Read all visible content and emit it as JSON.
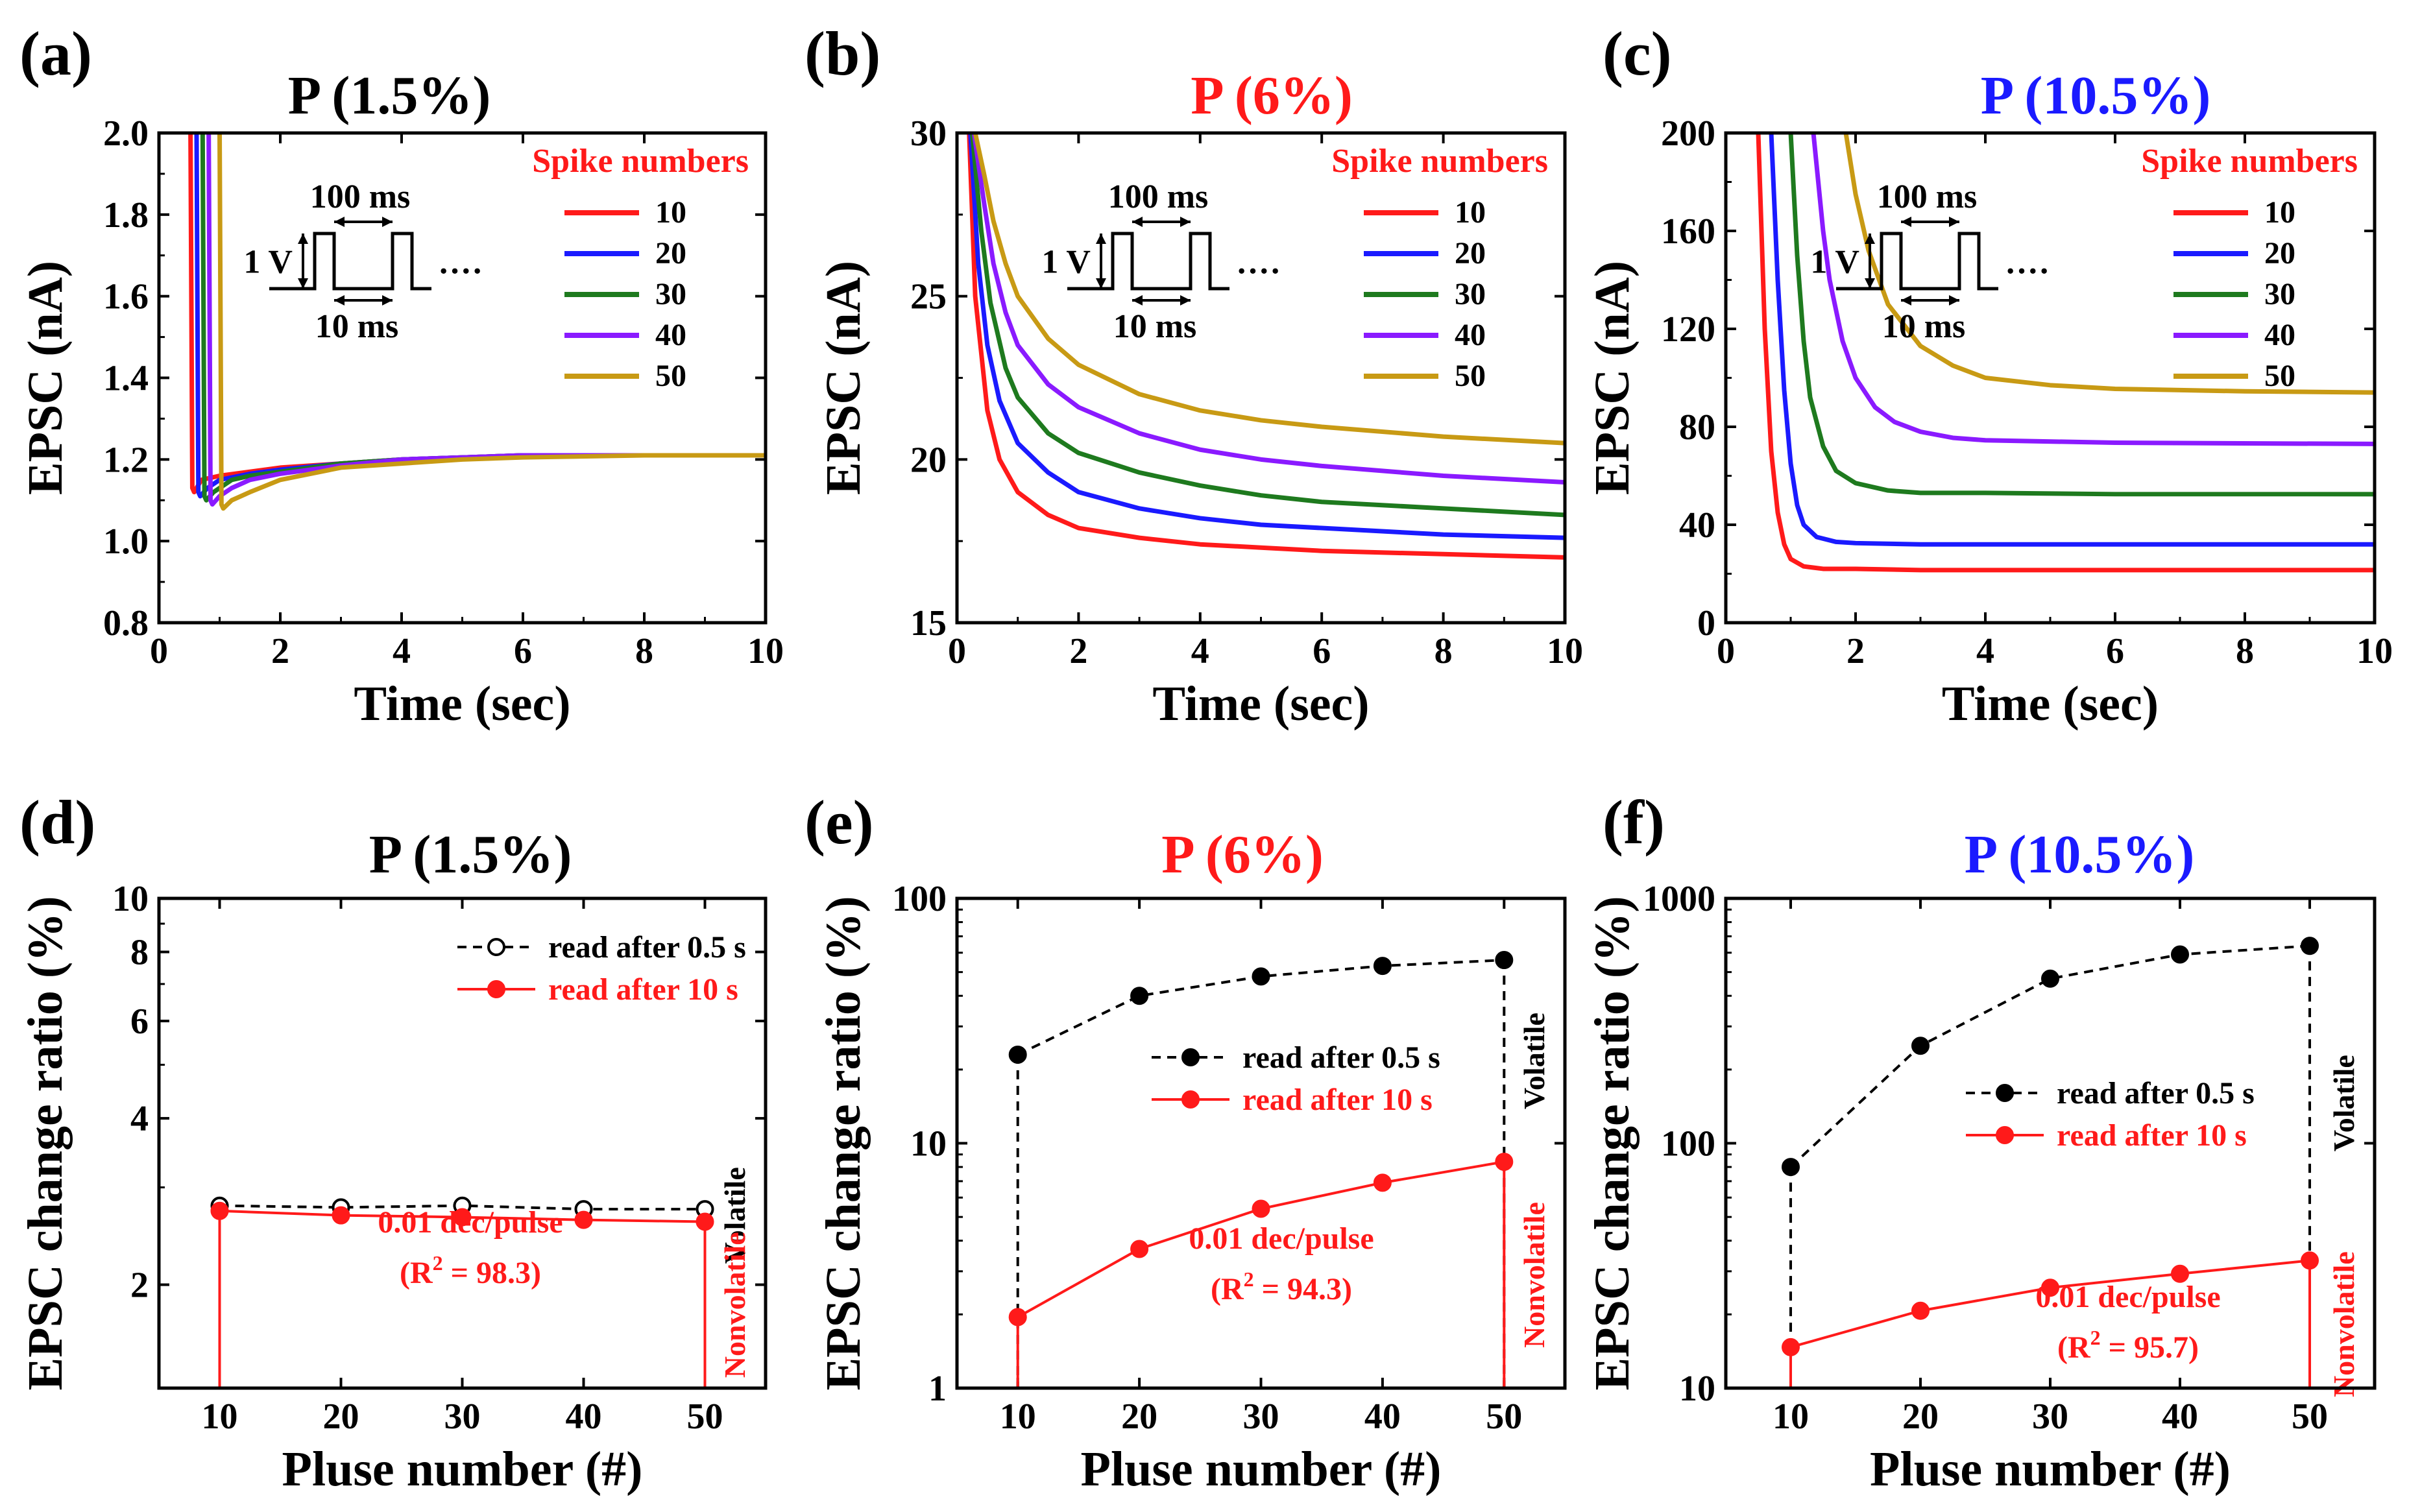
{
  "figure": {
    "colors": {
      "red": "#ff1a1a",
      "blue": "#1a1aff",
      "green": "#1e7a1e",
      "purple": "#8a1aff",
      "gold": "#c89a14",
      "black": "#000000"
    }
  },
  "chart_data": [
    {
      "panel_label": "(a)",
      "type": "line",
      "title": "P (1.5%)",
      "title_color": "#000000",
      "xlabel": "Time (sec)",
      "ylabel": "EPSC (nA)",
      "xlim": [
        0,
        10
      ],
      "ylim": [
        0.8,
        2.0
      ],
      "xticks": [
        0,
        2,
        4,
        6,
        8,
        10
      ],
      "xtick_labels": [
        "0",
        "2",
        "4",
        "6",
        "8",
        "10"
      ],
      "yticks": [
        0.8,
        1.0,
        1.2,
        1.4,
        1.6,
        1.8,
        2.0
      ],
      "ytick_labels": [
        "0.8",
        "1.0",
        "1.2",
        "1.4",
        "1.6",
        "1.8",
        "2.0"
      ],
      "legend_title": "Spike numbers",
      "inset": {
        "period_label": "100 ms",
        "amp_label": "1 V",
        "width_label": "10 ms",
        "dots": "····"
      },
      "series": [
        {
          "name": "10",
          "color": "#ff1a1a",
          "x": [
            0.52,
            0.55,
            0.58,
            0.7,
            1,
            1.5,
            2,
            3,
            4,
            5,
            6,
            8,
            10
          ],
          "y": [
            2.0,
            1.13,
            1.12,
            1.15,
            1.16,
            1.17,
            1.18,
            1.19,
            1.2,
            1.205,
            1.21,
            1.21,
            1.21
          ]
        },
        {
          "name": "20",
          "color": "#1a1aff",
          "x": [
            0.62,
            0.65,
            0.68,
            0.8,
            1,
            1.5,
            2,
            3,
            4,
            5,
            6,
            8,
            10
          ],
          "y": [
            2.0,
            1.12,
            1.11,
            1.13,
            1.15,
            1.165,
            1.175,
            1.19,
            1.2,
            1.205,
            1.21,
            1.21,
            1.21
          ]
        },
        {
          "name": "30",
          "color": "#1e7a1e",
          "x": [
            0.72,
            0.75,
            0.78,
            0.9,
            1.2,
            1.5,
            2,
            3,
            4,
            5,
            6,
            8,
            10
          ],
          "y": [
            2.0,
            1.11,
            1.1,
            1.12,
            1.15,
            1.16,
            1.17,
            1.19,
            1.2,
            1.205,
            1.21,
            1.21,
            1.21
          ]
        },
        {
          "name": "40",
          "color": "#8a1aff",
          "x": [
            0.82,
            0.85,
            0.88,
            1.0,
            1.2,
            1.5,
            2,
            3,
            4,
            5,
            6,
            8,
            10
          ],
          "y": [
            2.0,
            1.1,
            1.09,
            1.11,
            1.13,
            1.15,
            1.165,
            1.185,
            1.2,
            1.205,
            1.21,
            1.21,
            1.21
          ]
        },
        {
          "name": "50",
          "color": "#c89a14",
          "x": [
            1.0,
            1.03,
            1.06,
            1.2,
            1.5,
            2,
            3,
            4,
            5,
            6,
            8,
            10
          ],
          "y": [
            2.0,
            1.09,
            1.08,
            1.1,
            1.12,
            1.15,
            1.18,
            1.19,
            1.2,
            1.205,
            1.21,
            1.21
          ]
        }
      ]
    },
    {
      "panel_label": "(b)",
      "type": "line",
      "title": "P (6%)",
      "title_color": "#ff1a1a",
      "xlabel": "Time (sec)",
      "ylabel": "EPSC (nA)",
      "xlim": [
        0,
        10
      ],
      "ylim": [
        15,
        30
      ],
      "xticks": [
        0,
        2,
        4,
        6,
        8,
        10
      ],
      "xtick_labels": [
        "0",
        "2",
        "4",
        "6",
        "8",
        "10"
      ],
      "yticks": [
        15,
        20,
        25,
        30
      ],
      "ytick_labels": [
        "15",
        "20",
        "25",
        "30"
      ],
      "legend_title": "Spike numbers",
      "inset": {
        "period_label": "100 ms",
        "amp_label": "1 V",
        "width_label": "10 ms",
        "dots": "····"
      },
      "series": [
        {
          "name": "10",
          "color": "#ff1a1a",
          "x": [
            0.2,
            0.3,
            0.5,
            0.7,
            1,
            1.5,
            2,
            3,
            4,
            5,
            6,
            8,
            10
          ],
          "y": [
            30,
            25,
            21.5,
            20.0,
            19.0,
            18.3,
            17.9,
            17.6,
            17.4,
            17.3,
            17.2,
            17.1,
            17.0
          ]
        },
        {
          "name": "20",
          "color": "#1a1aff",
          "x": [
            0.22,
            0.35,
            0.5,
            0.7,
            1,
            1.5,
            2,
            3,
            4,
            5,
            6,
            8,
            10
          ],
          "y": [
            30,
            26,
            23.5,
            21.8,
            20.5,
            19.6,
            19.0,
            18.5,
            18.2,
            18.0,
            17.9,
            17.7,
            17.6
          ]
        },
        {
          "name": "30",
          "color": "#1e7a1e",
          "x": [
            0.25,
            0.4,
            0.55,
            0.8,
            1,
            1.5,
            2,
            3,
            4,
            5,
            6,
            8,
            10
          ],
          "y": [
            30,
            27,
            24.8,
            22.8,
            21.9,
            20.8,
            20.2,
            19.6,
            19.2,
            18.9,
            18.7,
            18.5,
            18.3
          ]
        },
        {
          "name": "40",
          "color": "#8a1aff",
          "x": [
            0.28,
            0.45,
            0.6,
            0.8,
            1,
            1.5,
            2,
            3,
            4,
            5,
            6,
            8,
            10
          ],
          "y": [
            30,
            27.8,
            26.0,
            24.5,
            23.5,
            22.3,
            21.6,
            20.8,
            20.3,
            20.0,
            19.8,
            19.5,
            19.3
          ]
        },
        {
          "name": "50",
          "color": "#c89a14",
          "x": [
            0.3,
            0.45,
            0.6,
            0.8,
            1,
            1.5,
            2,
            3,
            4,
            5,
            6,
            8,
            10
          ],
          "y": [
            30,
            28.7,
            27.3,
            26.0,
            25.0,
            23.7,
            22.9,
            22.0,
            21.5,
            21.2,
            21.0,
            20.7,
            20.5
          ]
        }
      ]
    },
    {
      "panel_label": "(c)",
      "type": "line",
      "title": "P (10.5%)",
      "title_color": "#1a1aff",
      "xlabel": "Time (sec)",
      "ylabel": "EPSC (nA)",
      "xlim": [
        0,
        10
      ],
      "ylim": [
        0,
        200
      ],
      "xticks": [
        0,
        2,
        4,
        6,
        8,
        10
      ],
      "xtick_labels": [
        "0",
        "2",
        "4",
        "6",
        "8",
        "10"
      ],
      "yticks": [
        0,
        40,
        80,
        120,
        160,
        200
      ],
      "ytick_labels": [
        "0",
        "40",
        "80",
        "120",
        "160",
        "200"
      ],
      "legend_title": "Spike numbers",
      "inset": {
        "period_label": "100 ms",
        "amp_label": "1 V",
        "width_label": "10 ms",
        "dots": "····"
      },
      "series": [
        {
          "name": "10",
          "color": "#ff1a1a",
          "x": [
            0.5,
            0.6,
            0.7,
            0.8,
            0.9,
            1.0,
            1.2,
            1.5,
            2,
            3,
            5,
            10
          ],
          "y": [
            200,
            120,
            70,
            45,
            32,
            26,
            23,
            22,
            22,
            21.5,
            21.5,
            21.5
          ]
        },
        {
          "name": "20",
          "color": "#1a1aff",
          "x": [
            0.7,
            0.8,
            0.9,
            1.0,
            1.1,
            1.2,
            1.4,
            1.7,
            2,
            3,
            5,
            10
          ],
          "y": [
            200,
            140,
            95,
            65,
            48,
            40,
            35,
            33,
            32.5,
            32,
            32,
            32
          ]
        },
        {
          "name": "30",
          "color": "#1e7a1e",
          "x": [
            1.0,
            1.1,
            1.2,
            1.3,
            1.5,
            1.7,
            2,
            2.5,
            3,
            4,
            6,
            10
          ],
          "y": [
            200,
            150,
            115,
            92,
            72,
            62,
            57,
            54,
            53,
            53,
            52.5,
            52.5
          ]
        },
        {
          "name": "40",
          "color": "#8a1aff",
          "x": [
            1.35,
            1.5,
            1.6,
            1.8,
            2,
            2.3,
            2.6,
            3,
            3.5,
            4,
            6,
            10
          ],
          "y": [
            200,
            160,
            140,
            115,
            100,
            88,
            82,
            78,
            75.5,
            74.5,
            73.5,
            73
          ]
        },
        {
          "name": "50",
          "color": "#c89a14",
          "x": [
            1.85,
            2.0,
            2.2,
            2.5,
            3,
            3.5,
            4,
            5,
            6,
            8,
            10
          ],
          "y": [
            200,
            175,
            152,
            130,
            113,
            105,
            100,
            97,
            95.5,
            94.5,
            94
          ]
        }
      ]
    },
    {
      "panel_label": "(d)",
      "type": "line",
      "title": "P (1.5%)",
      "title_color": "#000000",
      "xlabel": "Pluse number (#)",
      "ylabel": "EPSC change ratio (%)",
      "yscale": "log",
      "xlim": [
        5,
        55
      ],
      "ylim": [
        1.3,
        10
      ],
      "xticks": [
        10,
        20,
        30,
        40,
        50
      ],
      "xtick_labels": [
        "10",
        "20",
        "30",
        "40",
        "50"
      ],
      "yticks": [
        2,
        4,
        6,
        8,
        10
      ],
      "ytick_labels": [
        "2",
        "4",
        "6",
        "8",
        "10"
      ],
      "annotation": "0.01 dec/pulse",
      "r2_prefix": "(R",
      "r2_sup": "2",
      "r2_value": " = 98.3)",
      "volatile_label": "Volatile",
      "nonvolatile_label": "Nonvolatile",
      "x": [
        10,
        20,
        30,
        40,
        50
      ],
      "series": [
        {
          "name": "read after 0.5 s",
          "color": "#000000",
          "marker": "open-circle",
          "values": [
            2.78,
            2.76,
            2.78,
            2.74,
            2.74
          ]
        },
        {
          "name": "read after 10 s",
          "color": "#ff1a1a",
          "marker": "filled-circle",
          "values": [
            2.72,
            2.67,
            2.65,
            2.62,
            2.6
          ]
        }
      ]
    },
    {
      "panel_label": "(e)",
      "type": "line",
      "title": "P (6%)",
      "title_color": "#ff1a1a",
      "xlabel": "Pluse number (#)",
      "ylabel": "EPSC change ratio (%)",
      "yscale": "log",
      "xlim": [
        5,
        55
      ],
      "ylim": [
        1,
        100
      ],
      "xticks": [
        10,
        20,
        30,
        40,
        50
      ],
      "xtick_labels": [
        "10",
        "20",
        "30",
        "40",
        "50"
      ],
      "yticks": [
        1,
        10,
        100
      ],
      "ytick_labels": [
        "1",
        "10",
        "100"
      ],
      "annotation": "0.01 dec/pulse",
      "r2_prefix": "(R",
      "r2_sup": "2",
      "r2_value": " = 94.3)",
      "volatile_label": "Volatile",
      "nonvolatile_label": "Nonvolatile",
      "x": [
        10,
        20,
        30,
        40,
        50
      ],
      "series": [
        {
          "name": "read after 0.5 s",
          "color": "#000000",
          "marker": "filled-circle",
          "values": [
            23,
            40,
            48,
            53,
            56
          ]
        },
        {
          "name": "read after 10 s",
          "color": "#ff1a1a",
          "marker": "filled-circle",
          "values": [
            1.95,
            3.7,
            5.4,
            6.9,
            8.4
          ]
        }
      ]
    },
    {
      "panel_label": "(f)",
      "type": "line",
      "title": "P (10.5%)",
      "title_color": "#1a1aff",
      "xlabel": "Pluse number (#)",
      "ylabel": "EPSC change ratio (%)",
      "yscale": "log",
      "xlim": [
        5,
        55
      ],
      "ylim": [
        10,
        1000
      ],
      "xticks": [
        10,
        20,
        30,
        40,
        50
      ],
      "xtick_labels": [
        "10",
        "20",
        "30",
        "40",
        "50"
      ],
      "yticks": [
        10,
        100,
        1000
      ],
      "ytick_labels": [
        "10",
        "100",
        "1000"
      ],
      "annotation": "0.01 dec/pulse",
      "r2_prefix": "(R",
      "r2_sup": "2",
      "r2_value": " = 95.7)",
      "volatile_label": "Volatile",
      "nonvolatile_label": "Nonvolatile",
      "x": [
        10,
        20,
        30,
        40,
        50
      ],
      "series": [
        {
          "name": "read after 0.5 s",
          "color": "#000000",
          "marker": "filled-circle",
          "values": [
            80,
            250,
            470,
            590,
            640
          ]
        },
        {
          "name": "read after 10 s",
          "color": "#ff1a1a",
          "marker": "filled-circle",
          "values": [
            14.7,
            20.7,
            25.7,
            29.3,
            33.2
          ]
        }
      ]
    }
  ]
}
